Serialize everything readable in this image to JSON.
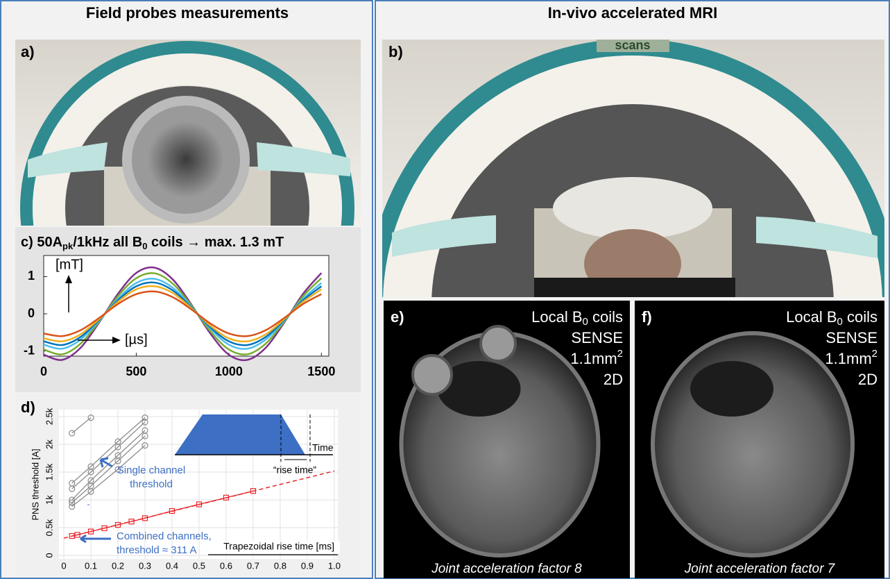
{
  "left_panel": {
    "title": "Field probes measurements",
    "photo_a_label": "a)"
  },
  "right_panel": {
    "title": "In-vivo accelerated MRI",
    "photo_b_label": "b)",
    "screen_text": "scans",
    "images": [
      {
        "label": "e)",
        "coil_pre": "Local B",
        "coil_sub": "0",
        "coil_post": " coils",
        "method": "SENSE",
        "res_base": "1.1mm",
        "res_sup": "2",
        "dims": "2D",
        "caption": "Joint acceleration factor 8"
      },
      {
        "label": "f)",
        "coil_pre": "Local B",
        "coil_sub": "0",
        "coil_post": " coils",
        "method": "SENSE",
        "res_base": "1.1mm",
        "res_sup": "2",
        "dims": "2D",
        "caption": "Joint acceleration factor 7"
      }
    ]
  },
  "chart_data": [
    {
      "type": "line",
      "title_parts": [
        "c) 50A",
        "pk",
        "/1kHz all B",
        "0",
        " coils → max. 1.3 mT"
      ],
      "y_unit": "[mT]",
      "x_unit": "[µs]",
      "x": [
        0,
        100,
        200,
        300,
        400,
        500,
        600,
        700,
        800,
        900,
        1000,
        1100,
        1200,
        1300,
        1400,
        1500
      ],
      "series": [
        {
          "color": "#7e2f8e",
          "values": [
            -1.1,
            -1.24,
            -0.91,
            -0.23,
            0.53,
            1.1,
            1.24,
            0.91,
            0.23,
            -0.53,
            -1.1,
            -1.24,
            -0.91,
            -0.23,
            0.53,
            1.1
          ]
        },
        {
          "color": "#77ac30",
          "values": [
            -0.96,
            -1.09,
            -0.8,
            -0.21,
            0.47,
            0.96,
            1.09,
            0.8,
            0.21,
            -0.47,
            -0.96,
            -1.09,
            -0.8,
            -0.21,
            0.47,
            0.96
          ]
        },
        {
          "color": "#4dbeee",
          "values": [
            -0.83,
            -0.94,
            -0.69,
            -0.18,
            0.4,
            0.83,
            0.94,
            0.69,
            0.18,
            -0.4,
            -0.83,
            -0.94,
            -0.69,
            -0.18,
            0.4,
            0.83
          ]
        },
        {
          "color": "#0072bd",
          "values": [
            -0.74,
            -0.84,
            -0.62,
            -0.16,
            0.36,
            0.74,
            0.84,
            0.62,
            0.16,
            -0.36,
            -0.74,
            -0.84,
            -0.62,
            -0.16,
            0.36,
            0.74
          ]
        },
        {
          "color": "#edb120",
          "values": [
            -0.66,
            -0.74,
            -0.55,
            -0.14,
            0.32,
            0.66,
            0.74,
            0.55,
            0.14,
            -0.32,
            -0.66,
            -0.74,
            -0.55,
            -0.14,
            0.32,
            0.66
          ]
        },
        {
          "color": "#d95319",
          "values": [
            -0.53,
            -0.6,
            -0.44,
            -0.11,
            0.26,
            0.53,
            0.6,
            0.44,
            0.11,
            -0.26,
            -0.53,
            -0.6,
            -0.44,
            -0.11,
            0.26,
            0.53
          ]
        }
      ],
      "xlim": [
        0,
        1540
      ],
      "ylim": [
        -1.14,
        1.57
      ],
      "xticks": [
        0,
        500,
        1000,
        1500
      ],
      "yticks": [
        -1,
        0,
        1
      ]
    },
    {
      "type": "scatter",
      "label": "d)",
      "xlabel": "Trapezoidal rise time [ms]",
      "ylabel": "PNS threshold [A]",
      "xlim": [
        -0.018,
        1.013
      ],
      "ylim": [
        -62,
        2625
      ],
      "xticks": [
        0,
        0.1,
        0.2,
        0.3,
        0.4,
        0.5,
        0.6,
        0.7,
        0.8,
        0.9,
        {
          "value": 1,
          "label": "1.0"
        }
      ],
      "yticks": [
        0,
        {
          "value": 500,
          "label": "0.5k"
        },
        {
          "value": 1000,
          "label": "1k"
        },
        {
          "value": 1500,
          "label": "1.5k"
        },
        {
          "value": 2000,
          "label": "2k"
        },
        {
          "value": 2500,
          "label": "2.5k"
        }
      ],
      "grid": true,
      "series": [
        {
          "color": "#8c8c8c",
          "marker": "circle",
          "x": [
            0.03,
            0.1,
            0.2,
            0.3
          ],
          "values": [
            1300,
            1600,
            2050,
            2480
          ]
        },
        {
          "color": "#8c8c8c",
          "marker": "circle",
          "x": [
            0.03,
            0.1,
            0.2,
            0.3
          ],
          "values": [
            1200,
            1500,
            1950,
            2400
          ]
        },
        {
          "color": "#8c8c8c",
          "marker": "circle",
          "x": [
            0.03,
            0.1,
            0.2,
            0.3
          ],
          "values": [
            1000,
            1350,
            1800,
            2250
          ]
        },
        {
          "color": "#8c8c8c",
          "marker": "circle",
          "x": [
            0.03,
            0.1,
            0.2,
            0.3
          ],
          "values": [
            950,
            1250,
            1700,
            2150
          ]
        },
        {
          "color": "#8c8c8c",
          "marker": "circle",
          "x": [
            0.03,
            0.1,
            0.2,
            0.3
          ],
          "values": [
            880,
            1150,
            1550,
            1980
          ]
        },
        {
          "color": "#8c8c8c",
          "marker": "circle",
          "x": [
            0.03,
            0.1
          ],
          "values": [
            2200,
            2480
          ]
        },
        {
          "color": "#e8262b",
          "marker": "square",
          "x": [
            0.03,
            0.05,
            0.1,
            0.15,
            0.2,
            0.25,
            0.3,
            0.4,
            0.5,
            0.6,
            0.7
          ],
          "values": [
            350,
            370,
            430,
            490,
            550,
            610,
            670,
            800,
            920,
            1040,
            1160
          ]
        }
      ],
      "fit": {
        "color": "#e8262b",
        "x": [
          0,
          1
        ],
        "values": [
          311,
          1520
        ]
      },
      "single_label": [
        "Single channel",
        "threshold"
      ],
      "combined_label": [
        "Combined channels,",
        "threshold ≈ 311 A"
      ],
      "inset_time": "Time",
      "inset_rise": "“rise time”"
    }
  ]
}
